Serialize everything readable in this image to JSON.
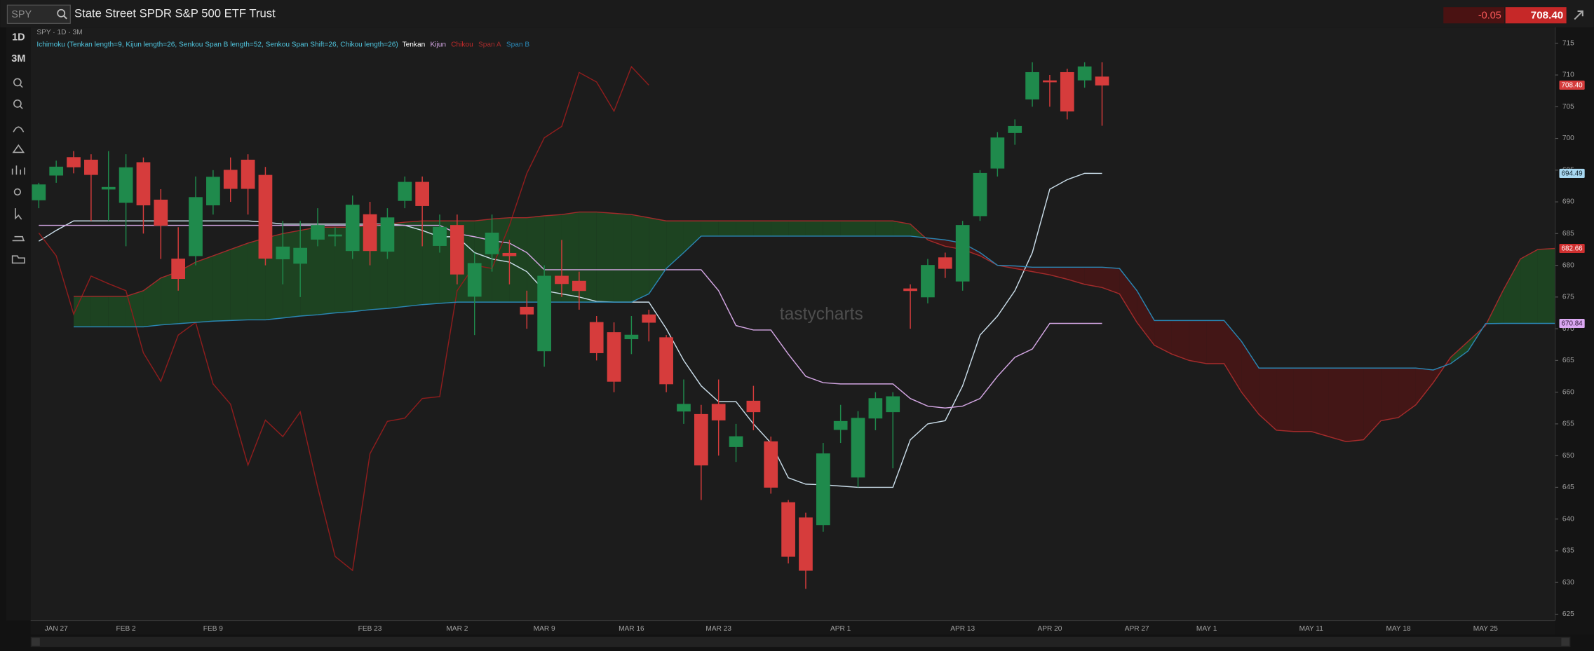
{
  "header": {
    "symbol_input": "SPY",
    "title": "State Street SPDR S&P 500 ETF Trust",
    "change": "-0.05",
    "price": "708.40"
  },
  "toolbar": {
    "timeframe": "1D",
    "range": "3M"
  },
  "watermark": "tastycharts",
  "chart_data": {
    "type": "candlestick",
    "subtitle": "SPY · 1D · 3M",
    "legend_title": "Ichimoku (Tenkan length=9, Kijun length=26, Senkou Span B length=52, Senkou Span Shift=26, Chikou length=26)",
    "categories": [
      null,
      "JAN 27",
      null,
      null,
      null,
      "FEB 2",
      null,
      null,
      null,
      null,
      "FEB 9",
      null,
      null,
      null,
      null,
      null,
      null,
      null,
      null,
      "FEB 23",
      null,
      null,
      null,
      null,
      "MAR 2",
      null,
      null,
      null,
      null,
      "MAR 9",
      null,
      null,
      null,
      null,
      "MAR 16",
      null,
      null,
      null,
      null,
      "MAR 23",
      null,
      null,
      null,
      null,
      null,
      null,
      "APR 1",
      null,
      null,
      null,
      null,
      null,
      null,
      "APR 13",
      null,
      null,
      null,
      null,
      "APR 20",
      null,
      null,
      null,
      null,
      "APR 27",
      null,
      null,
      null,
      "MAY 1",
      null,
      null,
      null,
      null,
      null,
      "MAY 11",
      null,
      null,
      null,
      null,
      "MAY 18",
      null,
      null,
      null,
      null,
      "MAY 25",
      null,
      null,
      null,
      null
    ],
    "ohlc": {
      "up_color": "#1f8a4c",
      "down_color": "#d63c3c",
      "open": [
        690.3,
        694.2,
        697,
        696.6,
        692,
        689.9,
        696.2,
        690.3,
        681,
        681.5,
        689.5,
        695,
        696.6,
        694.2,
        681,
        680.3,
        684.1,
        684.6,
        682.3,
        688,
        682.2,
        690.2,
        693.1,
        683.1,
        686.3,
        675.1,
        681.8,
        681.9,
        673.4,
        666.5,
        678.3,
        677.5,
        671,
        669.4,
        668.4,
        672.2,
        668.6,
        657,
        656.5,
        658.1,
        651.4,
        658.6,
        652.2,
        642.6,
        640.2,
        639.1,
        654.1,
        646.6,
        655.9,
        656.9,
        676.3,
        675,
        681.2,
        677.5,
        687.8,
        695.3,
        700.9,
        706.2,
        709.1,
        710.4,
        709.2,
        709.7,
        null,
        null,
        null,
        null,
        null,
        null,
        null,
        null,
        null,
        null,
        null,
        null,
        null,
        null,
        null,
        null,
        null,
        null,
        null,
        null,
        null,
        null,
        null,
        null,
        null,
        null
      ],
      "high": [
        693,
        696.5,
        698,
        697.5,
        698,
        697.5,
        697,
        692,
        686,
        694,
        695,
        697,
        697.5,
        695.5,
        687,
        687,
        689,
        686,
        691,
        690,
        689,
        694,
        694,
        688,
        688,
        682,
        688,
        684,
        676,
        680,
        684,
        679,
        672,
        671,
        672,
        673,
        669,
        662,
        658,
        662,
        655,
        661,
        653,
        643,
        641,
        652,
        658,
        657,
        660,
        660,
        677,
        681,
        682,
        687,
        695,
        701,
        703,
        712,
        710,
        711,
        712,
        712,
        null,
        null,
        null,
        null,
        null,
        null,
        null,
        null,
        null,
        null,
        null,
        null,
        null,
        null,
        null,
        null,
        null,
        null,
        null,
        null,
        null,
        null,
        null,
        null,
        null,
        null
      ],
      "low": [
        689,
        693,
        694.5,
        687,
        687,
        683,
        685,
        681,
        676,
        680,
        688,
        690,
        688,
        680,
        677,
        675,
        683,
        683,
        681,
        680,
        681,
        689,
        683,
        682,
        677,
        669,
        679,
        677,
        670,
        664,
        675,
        673,
        665,
        660,
        666,
        668,
        660,
        655,
        643,
        650,
        649,
        654,
        644,
        633,
        629,
        638,
        652,
        645,
        654,
        648,
        670,
        674,
        678,
        676,
        687,
        694,
        699,
        705,
        705,
        703,
        708,
        702,
        null,
        null,
        null,
        null,
        null,
        null,
        null,
        null,
        null,
        null,
        null,
        null,
        null,
        null,
        null,
        null,
        null,
        null,
        null,
        null,
        null,
        null,
        null,
        null,
        null,
        null
      ],
      "close": [
        692.7,
        695.5,
        695.5,
        694.3,
        692.3,
        695.4,
        689.5,
        686.3,
        677.9,
        690.7,
        693.9,
        692.1,
        692.1,
        681.1,
        682.9,
        682.7,
        686.3,
        684.8,
        689.5,
        682.3,
        687.5,
        693.1,
        689.4,
        686,
        678.6,
        680.3,
        685.1,
        681.5,
        672.3,
        678.3,
        677.1,
        676,
        666.2,
        661.7,
        669,
        671,
        661.3,
        658.1,
        648.5,
        655.6,
        653,
        656.9,
        645,
        634.1,
        631.9,
        650.3,
        655.4,
        655.9,
        659,
        659.3,
        676,
        680,
        679.5,
        686.3,
        694.5,
        700.1,
        701.9,
        710.4,
        708.9,
        704.3,
        711.3,
        708.4,
        null,
        null,
        null,
        null,
        null,
        null,
        null,
        null,
        null,
        null,
        null,
        null,
        null,
        null,
        null,
        null,
        null,
        null,
        null,
        null,
        null,
        null,
        null,
        null,
        null,
        null
      ]
    },
    "series": [
      {
        "name": "Tenkan",
        "color": "#c9dce8",
        "tag_color": "#a9d9f2",
        "tag_text_color": "#10232e",
        "values": [
          683.8,
          685.5,
          687,
          687,
          687,
          687,
          687,
          687,
          687,
          687,
          687,
          687,
          687,
          686.8,
          686.5,
          686.5,
          686.5,
          686.5,
          686.5,
          686.5,
          686.5,
          686.3,
          685.5,
          684.5,
          684.5,
          682,
          681,
          680.5,
          679,
          676,
          675.5,
          675,
          674.3,
          674.2,
          674.2,
          674.2,
          670,
          665,
          661,
          658.5,
          658.5,
          655,
          652,
          646.5,
          645.5,
          645.4,
          645.2,
          645,
          645,
          645,
          652.5,
          655,
          655.5,
          661,
          669,
          672,
          676,
          682,
          692,
          693.5,
          694.5,
          694.49,
          null,
          null,
          null,
          null,
          null,
          null,
          null,
          null,
          null,
          null,
          null,
          null,
          null,
          null,
          null,
          null,
          null,
          null,
          null,
          null,
          null,
          null,
          null,
          null,
          null,
          null
        ]
      },
      {
        "name": "Kijun",
        "color": "#d3a6e3",
        "tag_color": "#dba8f2",
        "tag_text_color": "#2a1433",
        "values": [
          686.3,
          686.3,
          686.3,
          686.3,
          686.3,
          686.3,
          686.3,
          686.3,
          686.3,
          686.3,
          686.3,
          686.3,
          686.3,
          686.3,
          686.3,
          686.3,
          686.3,
          686.3,
          686.3,
          686.3,
          686.3,
          686.3,
          686.3,
          686.3,
          685,
          684.5,
          683.9,
          683.5,
          682,
          679.3,
          679.3,
          679.3,
          679.3,
          679.3,
          679.3,
          679.3,
          679.3,
          679.3,
          679.3,
          676,
          670.5,
          669.8,
          669.8,
          666,
          662.5,
          661.5,
          661.3,
          661.3,
          661.3,
          661.3,
          659,
          657.8,
          657.5,
          657.8,
          659,
          662.5,
          665.5,
          666.8,
          670.84,
          670.84,
          670.84,
          670.84,
          null,
          null,
          null,
          null,
          null,
          null,
          null,
          null,
          null,
          null,
          null,
          null,
          null,
          null,
          null,
          null,
          null,
          null,
          null,
          null,
          null,
          null,
          null,
          null,
          null,
          null
        ]
      },
      {
        "name": "Chikou",
        "color": "#8e1d1d",
        "values": [
          685.1,
          681.5,
          672.3,
          678.3,
          677.1,
          676,
          666.2,
          661.7,
          669,
          671,
          661.3,
          658.1,
          648.5,
          655.6,
          653,
          656.9,
          645,
          634.1,
          631.9,
          650.3,
          655.4,
          655.9,
          659,
          659.3,
          676,
          680,
          679.5,
          686.3,
          694.5,
          700.1,
          701.9,
          710.4,
          708.9,
          704.3,
          711.3,
          708.4,
          null,
          null,
          null,
          null,
          null,
          null,
          null,
          null,
          null,
          null,
          null,
          null,
          null,
          null,
          null,
          null,
          null,
          null,
          null,
          null,
          null,
          null,
          null,
          null,
          null,
          null,
          null,
          null,
          null,
          null,
          null,
          null,
          null,
          null,
          null,
          null,
          null,
          null,
          null,
          null,
          null,
          null,
          null,
          null,
          null,
          null,
          null,
          null,
          null,
          null,
          null,
          null
        ]
      },
      {
        "name": "Span A",
        "color": "#a32b2b",
        "tag_color": "#cf2f2f",
        "tag_text_color": "#ffffff",
        "values": [
          null,
          null,
          675.1,
          675.1,
          675.1,
          675.1,
          676,
          678,
          679,
          680.5,
          681.5,
          682.5,
          683.5,
          684.3,
          685,
          685.5,
          686,
          686,
          686,
          686.3,
          686.5,
          686.8,
          687,
          687,
          687,
          687,
          687.3,
          687.5,
          687.5,
          687.8,
          688,
          688.4,
          688.4,
          688.2,
          688,
          687.5,
          687,
          687,
          687,
          687,
          687,
          687,
          687,
          687,
          687,
          687,
          687,
          687,
          687,
          687,
          686.5,
          684,
          683,
          682.5,
          681.5,
          680,
          679.5,
          679,
          678.5,
          677.8,
          677,
          676.5,
          675.5,
          671,
          667.4,
          666,
          665,
          664.5,
          664.5,
          660,
          656.5,
          654,
          653.8,
          653.8,
          653,
          652.2,
          652.5,
          655.5,
          656,
          658,
          661.5,
          665.5,
          668,
          670.5,
          676,
          681,
          682.5,
          682.66
        ]
      },
      {
        "name": "Span B",
        "color": "#2a86b3",
        "values": [
          null,
          null,
          670.3,
          670.3,
          670.3,
          670.3,
          670.3,
          670.6,
          670.8,
          671,
          671.2,
          671.3,
          671.4,
          671.4,
          671.7,
          672,
          672.2,
          672.5,
          672.7,
          673,
          673.2,
          673.5,
          673.8,
          674,
          674.2,
          674.2,
          674.2,
          674.2,
          674.2,
          674.2,
          674.2,
          674.2,
          674.2,
          674.2,
          674.2,
          675.5,
          679.5,
          682,
          684.6,
          684.6,
          684.6,
          684.6,
          684.6,
          684.6,
          684.6,
          684.6,
          684.6,
          684.6,
          684.6,
          684.6,
          684.6,
          684.3,
          684,
          683.5,
          682,
          680,
          679.9,
          679.7,
          679.7,
          679.7,
          679.7,
          679.7,
          679.5,
          676,
          671.3,
          671.3,
          671.3,
          671.3,
          671.3,
          668,
          663.8,
          663.8,
          663.8,
          663.8,
          663.8,
          663.8,
          663.8,
          663.8,
          663.8,
          663.8,
          663.5,
          664.5,
          666.5,
          670.8,
          670.84,
          670.84,
          670.84,
          670.84
        ]
      }
    ],
    "cloud_up_color": "#1d4a22",
    "cloud_down_color": "#4a1515",
    "legend_title_color": "#4fc3dc",
    "ylim": [
      624,
      717.5
    ],
    "yticks": [
      625,
      630,
      635,
      640,
      645,
      650,
      655,
      660,
      665,
      670,
      675,
      680,
      685,
      690,
      695,
      700,
      705,
      710,
      715
    ],
    "grid": false
  }
}
